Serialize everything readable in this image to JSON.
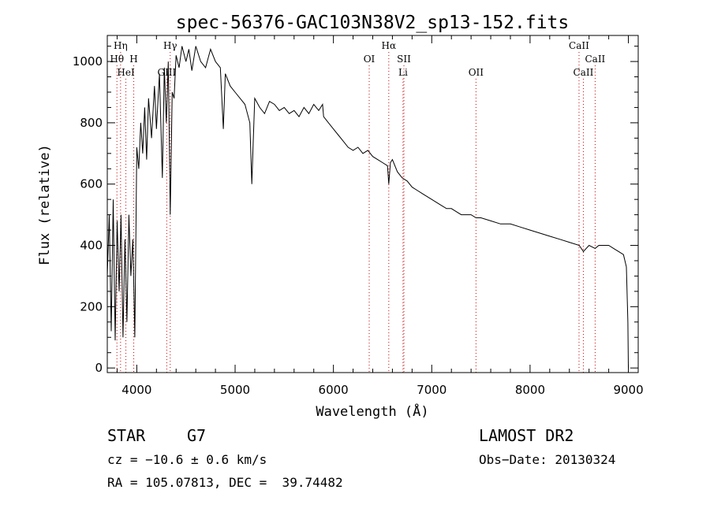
{
  "chart_data": {
    "type": "line",
    "title": "spec-56376-GAC103N38V2_sp13-152.fits",
    "xlabel": "Wavelength (Å)",
    "ylabel": "Flux (relative)",
    "xlim": [
      3700,
      9100
    ],
    "ylim": [
      -15,
      1085
    ],
    "xticks": [
      4000,
      5000,
      6000,
      7000,
      8000,
      9000
    ],
    "yticks": [
      0,
      200,
      400,
      600,
      800,
      1000
    ],
    "grid": false,
    "series": [
      {
        "color": "#000000",
        "x": [
          3700,
          3720,
          3740,
          3760,
          3780,
          3800,
          3820,
          3840,
          3860,
          3880,
          3900,
          3920,
          3940,
          3960,
          3980,
          4000,
          4020,
          4040,
          4060,
          4080,
          4100,
          4120,
          4150,
          4180,
          4200,
          4230,
          4260,
          4280,
          4300,
          4320,
          4340,
          4360,
          4380,
          4400,
          4430,
          4460,
          4500,
          4530,
          4560,
          4600,
          4650,
          4700,
          4750,
          4800,
          4850,
          4880,
          4900,
          4950,
          5000,
          5050,
          5100,
          5150,
          5170,
          5180,
          5200,
          5250,
          5300,
          5350,
          5400,
          5450,
          5500,
          5550,
          5600,
          5650,
          5700,
          5750,
          5800,
          5850,
          5890,
          5900,
          5950,
          6000,
          6050,
          6100,
          6150,
          6200,
          6250,
          6300,
          6350,
          6400,
          6450,
          6500,
          6550,
          6563,
          6580,
          6600,
          6650,
          6700,
          6750,
          6800,
          6850,
          6900,
          6950,
          7000,
          7050,
          7100,
          7150,
          7200,
          7250,
          7300,
          7350,
          7400,
          7450,
          7500,
          7600,
          7700,
          7800,
          7900,
          8000,
          8100,
          8200,
          8300,
          8400,
          8500,
          8542,
          8600,
          8662,
          8700,
          8750,
          8800,
          8850,
          8900,
          8950,
          8980,
          8995,
          9000
        ],
        "y": [
          300,
          500,
          120,
          550,
          90,
          480,
          250,
          500,
          100,
          420,
          150,
          500,
          300,
          420,
          100,
          720,
          650,
          800,
          700,
          850,
          680,
          880,
          750,
          920,
          780,
          960,
          620,
          980,
          800,
          1000,
          500,
          900,
          880,
          1020,
          980,
          1050,
          1000,
          1040,
          970,
          1050,
          1000,
          980,
          1040,
          1000,
          980,
          780,
          960,
          920,
          900,
          880,
          860,
          800,
          600,
          700,
          880,
          850,
          830,
          870,
          860,
          840,
          850,
          830,
          840,
          820,
          850,
          830,
          860,
          840,
          860,
          820,
          800,
          780,
          760,
          740,
          720,
          710,
          720,
          700,
          710,
          690,
          680,
          670,
          660,
          600,
          670,
          680,
          640,
          620,
          610,
          590,
          580,
          570,
          560,
          550,
          540,
          530,
          520,
          520,
          510,
          500,
          500,
          500,
          490,
          490,
          480,
          470,
          470,
          460,
          450,
          440,
          430,
          420,
          410,
          400,
          380,
          400,
          390,
          400,
          400,
          400,
          390,
          380,
          370,
          330,
          150,
          0
        ]
      }
    ],
    "line_markers": [
      {
        "name": "Hη",
        "wl": 3835,
        "row": 1
      },
      {
        "name": "Hθ",
        "wl": 3798,
        "row": 2
      },
      {
        "name": "H",
        "wl": 3969,
        "row": 2
      },
      {
        "name": "HeI",
        "wl": 3889,
        "row": 3
      },
      {
        "name": "Hγ",
        "wl": 4340,
        "row": 1
      },
      {
        "name": "GIII",
        "wl": 4305,
        "row": 3
      },
      {
        "name": "OI",
        "wl": 6364,
        "row": 2
      },
      {
        "name": "Hα",
        "wl": 6563,
        "row": 1
      },
      {
        "name": "SII",
        "wl": 6717,
        "row": 2
      },
      {
        "name": "Li",
        "wl": 6708,
        "row": 3
      },
      {
        "name": "OII",
        "wl": 7450,
        "row": 3
      },
      {
        "name": "CaII",
        "wl": 8498,
        "row": 1
      },
      {
        "name": "CaII",
        "wl": 8662,
        "row": 2
      },
      {
        "name": "CaII",
        "wl": 8542,
        "row": 3
      }
    ]
  },
  "info": {
    "class_label": "STAR",
    "subclass": "G7",
    "cz": "cz = −10.6 ± 0.6 km/s",
    "coords": "RA = 105.07813, DEC =  39.74482",
    "survey": "LAMOST DR2",
    "obs_date": "Obs−Date: 20130324"
  },
  "colors": {
    "marker_line": "#cc0000",
    "spectrum": "#000000",
    "axis": "#000000"
  }
}
